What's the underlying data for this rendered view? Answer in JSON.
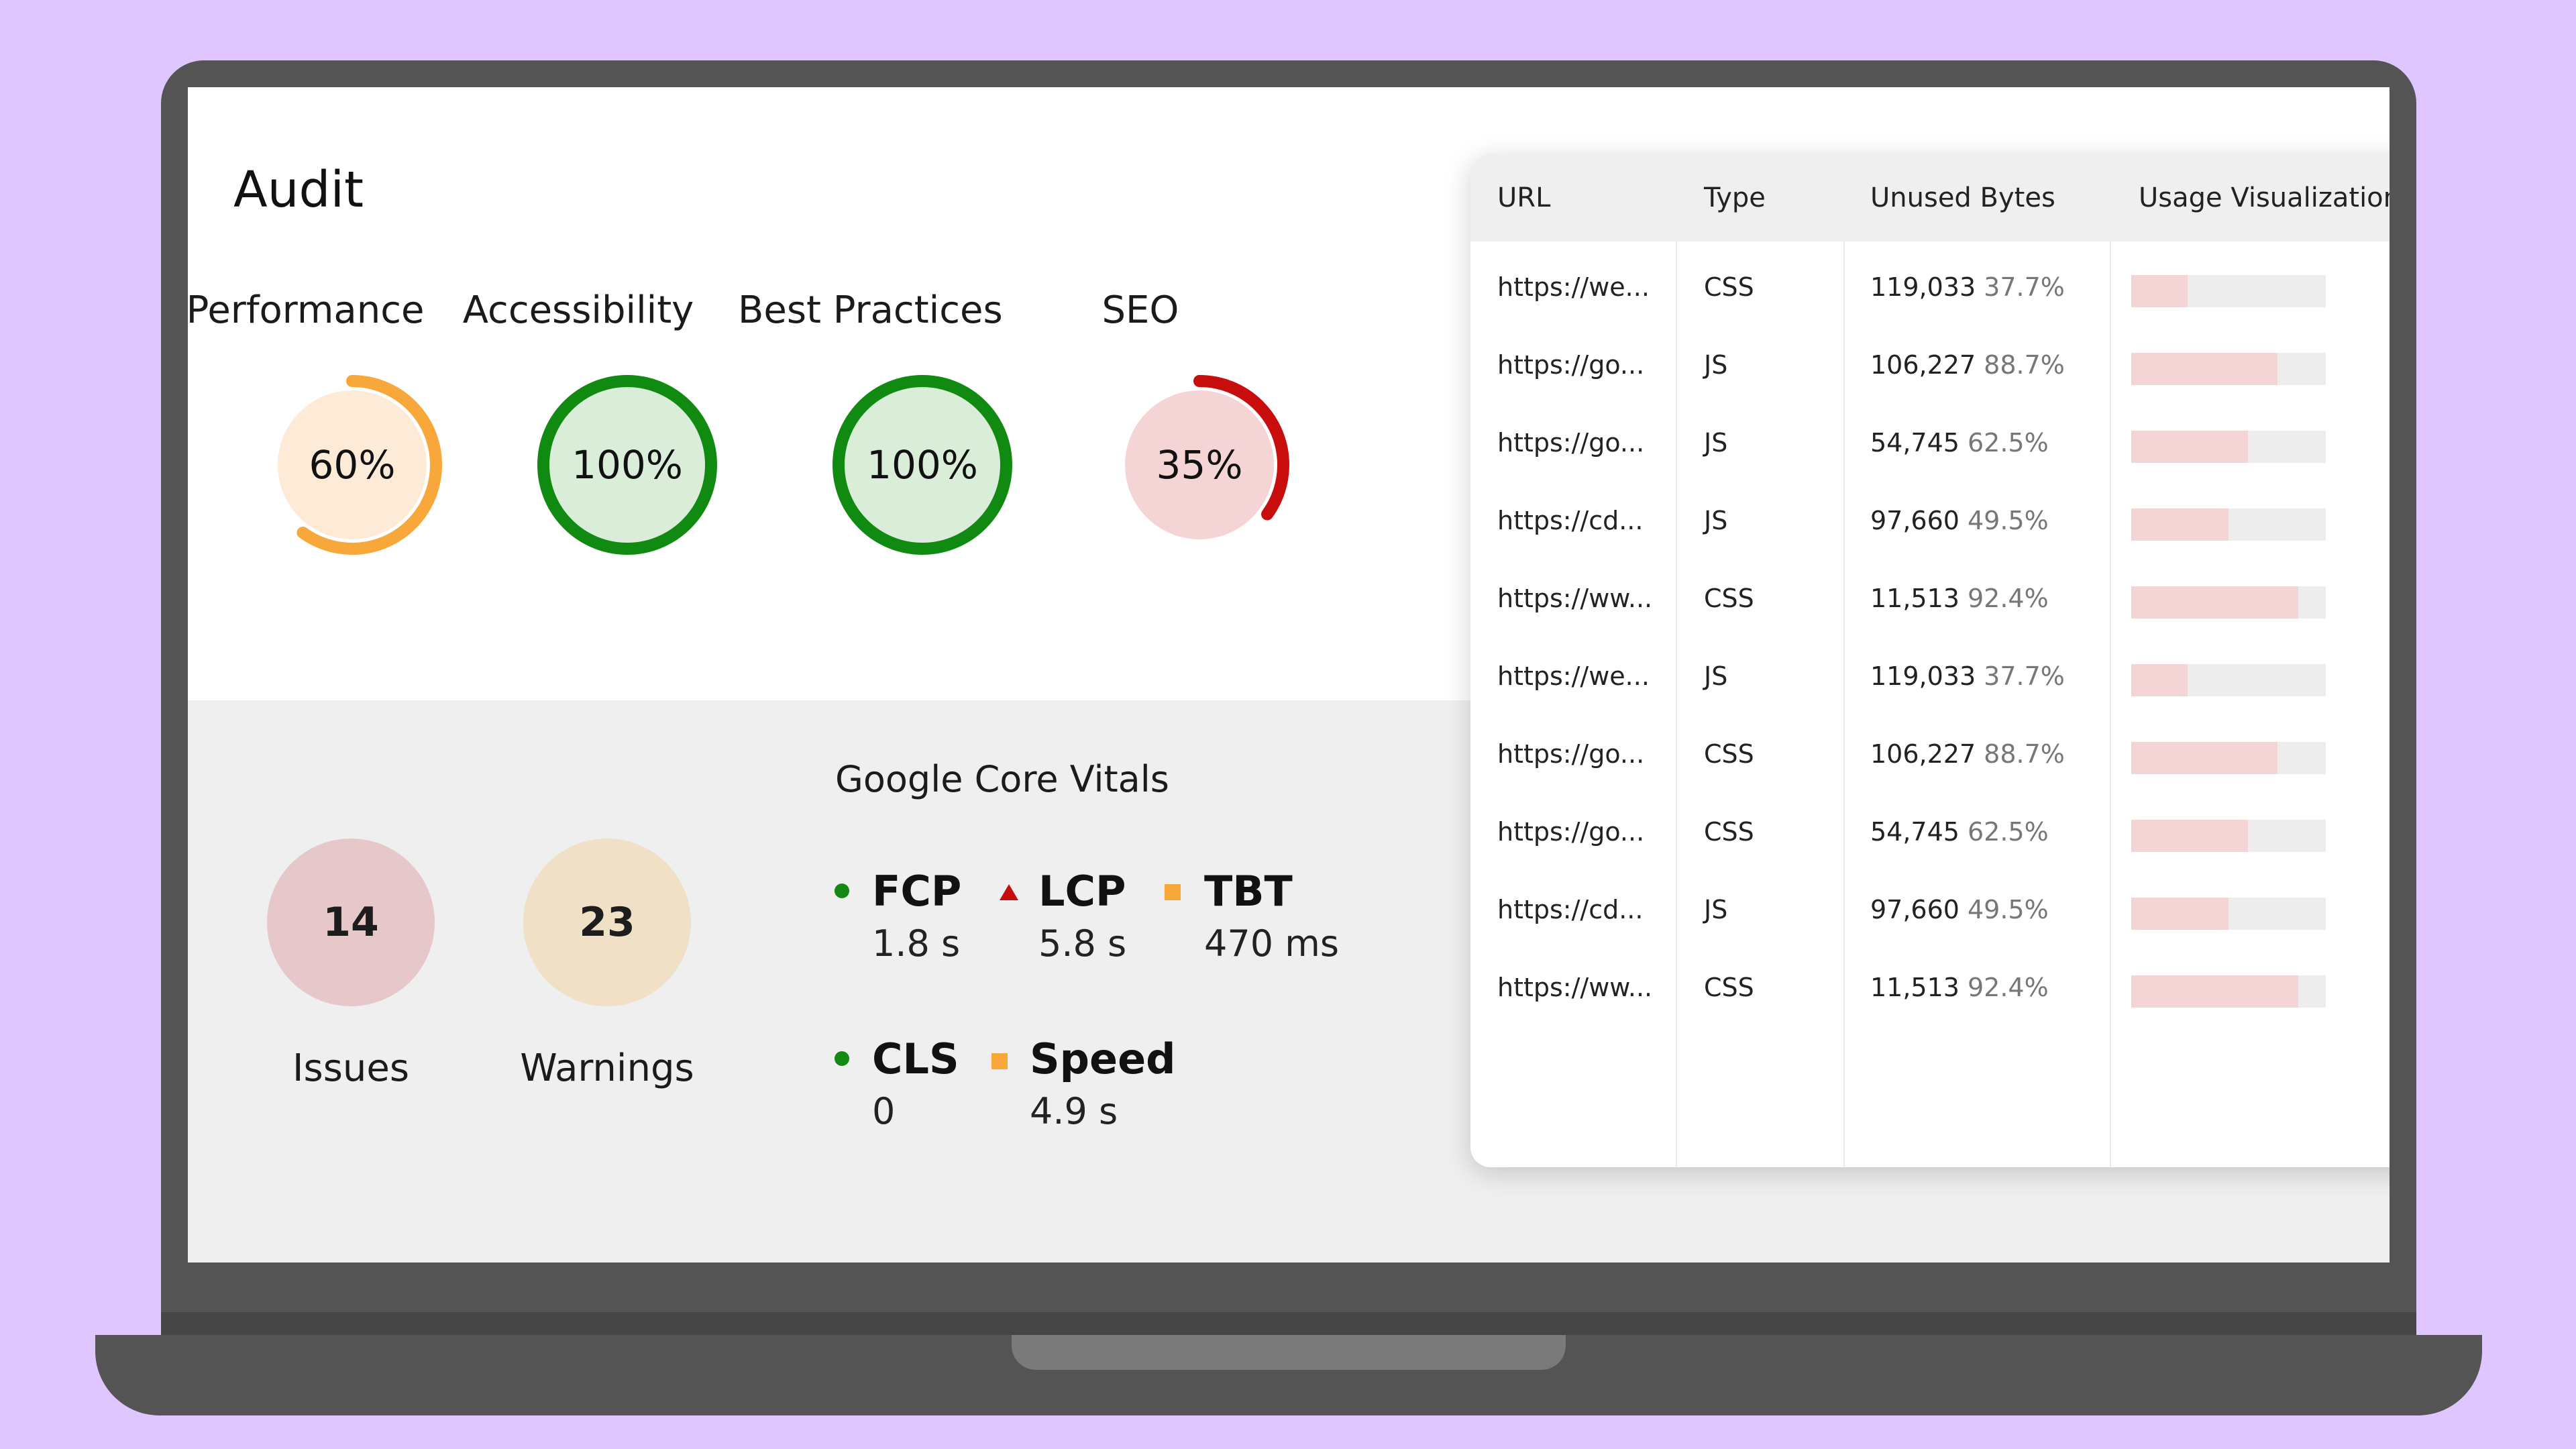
{
  "audit": {
    "title": "Audit",
    "scores": [
      {
        "label": "Performance",
        "value": "60%",
        "fraction": 0.6,
        "color": "#f8a73a",
        "fill": "#fdebd8"
      },
      {
        "label": "Accessibility",
        "value": "100%",
        "fraction": 1.0,
        "color": "#118a11",
        "fill": "#d9edd9"
      },
      {
        "label": "Best Practices",
        "value": "100%",
        "fraction": 1.0,
        "color": "#118a11",
        "fill": "#d9edd9"
      },
      {
        "label": "SEO",
        "value": "35%",
        "fraction": 0.35,
        "color": "#c80d0d",
        "fill": "#f5d4d6"
      }
    ]
  },
  "summary": {
    "issues": {
      "count": "14",
      "label": "Issues",
      "color": "#e6c8cb"
    },
    "warnings": {
      "count": "23",
      "label": "Warnings",
      "color": "#f0e0c6"
    }
  },
  "vitals": {
    "title": "Google Core Vitals",
    "items": [
      {
        "name": "FCP",
        "value": "1.8 s",
        "marker": "dot-green"
      },
      {
        "name": "LCP",
        "value": "5.8 s",
        "marker": "triangle-red"
      },
      {
        "name": "TBT",
        "value": "470 ms",
        "marker": "square-orange"
      },
      {
        "name": "CLS",
        "value": "0",
        "marker": "dot-green"
      },
      {
        "name": "Speed",
        "value": "4.9 s",
        "marker": "square-orange"
      }
    ]
  },
  "table": {
    "headers": [
      "URL",
      "Type",
      "Unused Bytes",
      "Usage Visualization"
    ],
    "rows": [
      {
        "url": "https://we...",
        "type": "CSS",
        "bytes": "119,033",
        "pct": "37.7%",
        "usage": 0.29
      },
      {
        "url": "https://go...",
        "type": "JS",
        "bytes": "106,227",
        "pct": "88.7%",
        "usage": 0.75
      },
      {
        "url": "https://go...",
        "type": "JS",
        "bytes": "54,745",
        "pct": "62.5%",
        "usage": 0.6
      },
      {
        "url": "https://cd...",
        "type": "JS",
        "bytes": "97,660",
        "pct": "49.5%",
        "usage": 0.5
      },
      {
        "url": "https://ww...",
        "type": "CSS",
        "bytes": "11,513",
        "pct": "92.4%",
        "usage": 0.86
      },
      {
        "url": "https://we...",
        "type": "JS",
        "bytes": "119,033",
        "pct": "37.7%",
        "usage": 0.29
      },
      {
        "url": "https://go...",
        "type": "CSS",
        "bytes": "106,227",
        "pct": "88.7%",
        "usage": 0.75
      },
      {
        "url": "https://go...",
        "type": "CSS",
        "bytes": "54,745",
        "pct": "62.5%",
        "usage": 0.6
      },
      {
        "url": "https://cd...",
        "type": "JS",
        "bytes": "97,660",
        "pct": "49.5%",
        "usage": 0.5
      },
      {
        "url": "https://ww...",
        "type": "CSS",
        "bytes": "11,513",
        "pct": "92.4%",
        "usage": 0.86
      }
    ]
  }
}
